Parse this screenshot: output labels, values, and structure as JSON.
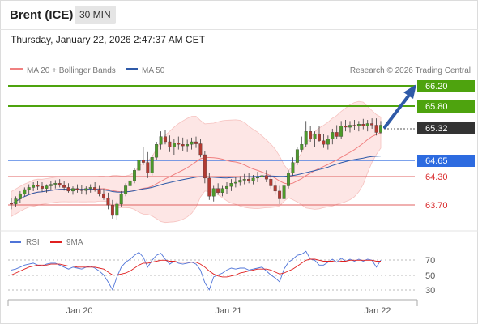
{
  "header": {
    "instrument": "Brent (ICE)",
    "timeframe": "30 MIN",
    "datetime": "Thursday, January 22, 2026 2:47:37 AM CET"
  },
  "main_legend": {
    "ma20_label": "MA 20 + Bollinger Bands",
    "ma50_label": "MA 50",
    "credit": "Research © 2026 Trading Central",
    "ma20_color": "#f08080",
    "ma50_color": "#2f5aa8"
  },
  "levels": {
    "resistance2": "66.20",
    "resistance1": "65.80",
    "current": "65.32",
    "pivot": "64.65",
    "support1": "64.30",
    "support2": "63.70",
    "colors": {
      "resistance": "#4ea30e",
      "current": "#333333",
      "pivot": "#2d6be0",
      "support": "#d9292b"
    }
  },
  "rsi_legend": {
    "rsi_label": "RSI",
    "ma_label": "9MA",
    "rsi_color": "#4f74d8",
    "ma_color": "#e02020"
  },
  "rsi_axis": [
    "70",
    "50",
    "30"
  ],
  "x_axis": [
    "Jan 20",
    "Jan 21",
    "Jan 22"
  ],
  "chart_data": {
    "type": "candlestick",
    "price_range": [
      63.3,
      66.45
    ],
    "candles": {
      "fields": [
        "open",
        "high",
        "low",
        "close"
      ],
      "values": [
        [
          63.82,
          63.92,
          63.7,
          63.8
        ],
        [
          63.8,
          63.95,
          63.74,
          63.9
        ],
        [
          63.9,
          64.05,
          63.82,
          64.0
        ],
        [
          64.0,
          64.12,
          63.95,
          64.08
        ],
        [
          64.08,
          64.18,
          64.0,
          64.12
        ],
        [
          64.12,
          64.22,
          64.05,
          64.16
        ],
        [
          64.16,
          64.25,
          64.08,
          64.14
        ],
        [
          64.14,
          64.22,
          64.04,
          64.1
        ],
        [
          64.1,
          64.18,
          64.02,
          64.15
        ],
        [
          64.15,
          64.24,
          64.08,
          64.18
        ],
        [
          64.18,
          64.26,
          64.1,
          64.2
        ],
        [
          64.2,
          64.28,
          64.12,
          64.16
        ],
        [
          64.16,
          64.24,
          64.06,
          64.12
        ],
        [
          64.12,
          64.2,
          64.02,
          64.05
        ],
        [
          64.05,
          64.14,
          63.98,
          64.1
        ],
        [
          64.1,
          64.18,
          64.02,
          64.08
        ],
        [
          64.08,
          64.16,
          64.0,
          64.06
        ],
        [
          64.06,
          64.14,
          63.98,
          64.1
        ],
        [
          64.1,
          64.18,
          64.02,
          64.12
        ],
        [
          64.12,
          64.22,
          64.04,
          64.08
        ],
        [
          64.08,
          64.15,
          63.95,
          64.0
        ],
        [
          64.0,
          64.1,
          63.88,
          63.92
        ],
        [
          63.92,
          64.02,
          63.7,
          63.78
        ],
        [
          63.78,
          63.88,
          63.52,
          63.58
        ],
        [
          63.58,
          63.85,
          63.5,
          63.8
        ],
        [
          63.8,
          64.05,
          63.75,
          64.0
        ],
        [
          64.0,
          64.2,
          63.95,
          64.15
        ],
        [
          64.15,
          64.3,
          64.1,
          64.25
        ],
        [
          64.25,
          64.5,
          64.2,
          64.45
        ],
        [
          64.45,
          64.7,
          64.4,
          64.65
        ],
        [
          64.65,
          64.9,
          64.55,
          64.6
        ],
        [
          64.6,
          64.8,
          64.3,
          64.4
        ],
        [
          64.4,
          64.75,
          64.35,
          64.7
        ],
        [
          64.7,
          65.0,
          64.65,
          64.95
        ],
        [
          64.95,
          65.2,
          64.85,
          65.1
        ],
        [
          65.1,
          65.22,
          64.95,
          65.0
        ],
        [
          65.0,
          65.12,
          64.8,
          64.9
        ],
        [
          64.9,
          65.05,
          64.75,
          64.98
        ],
        [
          64.98,
          65.1,
          64.85,
          64.95
        ],
        [
          64.95,
          65.08,
          64.82,
          64.92
        ],
        [
          64.92,
          65.04,
          64.8,
          64.95
        ],
        [
          64.95,
          65.08,
          64.85,
          65.0
        ],
        [
          65.0,
          65.1,
          64.88,
          64.96
        ],
        [
          64.96,
          65.05,
          64.7,
          64.75
        ],
        [
          64.75,
          64.82,
          64.2,
          64.3
        ],
        [
          64.3,
          64.4,
          63.88,
          63.95
        ],
        [
          63.95,
          64.15,
          63.85,
          64.1
        ],
        [
          64.1,
          64.2,
          63.98,
          64.02
        ],
        [
          64.02,
          64.15,
          63.95,
          64.1
        ],
        [
          64.1,
          64.22,
          64.0,
          64.14
        ],
        [
          64.14,
          64.28,
          64.05,
          64.2
        ],
        [
          64.2,
          64.32,
          64.12,
          64.22
        ],
        [
          64.22,
          64.34,
          64.15,
          64.26
        ],
        [
          64.26,
          64.38,
          64.18,
          64.28
        ],
        [
          64.28,
          64.4,
          64.2,
          64.25
        ],
        [
          64.25,
          64.36,
          64.18,
          64.3
        ],
        [
          64.3,
          64.42,
          64.22,
          64.32
        ],
        [
          64.32,
          64.44,
          64.26,
          64.35
        ],
        [
          64.35,
          64.45,
          64.22,
          64.28
        ],
        [
          64.28,
          64.38,
          64.1,
          64.15
        ],
        [
          64.15,
          64.25,
          63.98,
          64.05
        ],
        [
          64.05,
          64.15,
          63.8,
          63.9
        ],
        [
          63.9,
          64.2,
          63.85,
          64.15
        ],
        [
          64.15,
          64.45,
          64.1,
          64.4
        ],
        [
          64.4,
          64.7,
          64.35,
          64.6
        ],
        [
          64.6,
          64.9,
          64.55,
          64.85
        ],
        [
          64.85,
          65.1,
          64.8,
          64.95
        ],
        [
          64.95,
          65.4,
          64.9,
          65.2
        ],
        [
          65.2,
          65.3,
          65.0,
          65.05
        ],
        [
          65.05,
          65.2,
          64.9,
          65.15
        ],
        [
          65.15,
          65.3,
          65.0,
          65.02
        ],
        [
          65.02,
          65.15,
          64.88,
          64.95
        ],
        [
          64.95,
          65.12,
          64.85,
          65.05
        ],
        [
          65.05,
          65.25,
          64.95,
          65.18
        ],
        [
          65.18,
          65.32,
          65.05,
          65.1
        ],
        [
          65.1,
          65.4,
          65.05,
          65.3
        ],
        [
          65.3,
          65.42,
          65.2,
          65.28
        ],
        [
          65.28,
          65.4,
          65.18,
          65.32
        ],
        [
          65.32,
          65.42,
          65.22,
          65.3
        ],
        [
          65.3,
          65.4,
          65.2,
          65.34
        ],
        [
          65.34,
          65.44,
          65.24,
          65.3
        ],
        [
          65.3,
          65.42,
          65.2,
          65.35
        ],
        [
          65.35,
          65.45,
          65.25,
          65.32
        ],
        [
          65.32,
          65.45,
          65.12,
          65.18
        ],
        [
          65.18,
          65.4,
          65.15,
          65.32
        ]
      ]
    },
    "rsi": [
      55,
      56,
      58,
      60,
      61,
      62,
      60,
      59,
      61,
      62,
      62,
      60,
      58,
      56,
      58,
      57,
      56,
      58,
      59,
      57,
      54,
      50,
      43,
      35,
      48,
      58,
      63,
      66,
      70,
      73,
      68,
      58,
      65,
      70,
      72,
      66,
      61,
      64,
      62,
      61,
      62,
      63,
      61,
      55,
      42,
      35,
      48,
      50,
      52,
      55,
      57,
      56,
      57,
      57,
      55,
      56,
      57,
      58,
      54,
      50,
      47,
      43,
      56,
      63,
      66,
      70,
      71,
      74,
      66,
      65,
      60,
      60,
      63,
      66,
      63,
      67,
      64,
      66,
      64,
      66,
      64,
      66,
      65,
      58,
      65
    ],
    "rsi_ma": [
      50,
      52,
      54,
      56,
      58,
      59,
      60,
      60,
      60,
      61,
      61,
      61,
      60,
      59,
      59,
      58,
      58,
      58,
      58,
      58,
      57,
      56,
      53,
      50,
      50,
      51,
      52,
      54,
      57,
      60,
      62,
      62,
      63,
      64,
      65,
      65,
      64,
      64,
      63,
      63,
      63,
      63,
      63,
      61,
      58,
      54,
      51,
      49,
      48,
      48,
      49,
      50,
      52,
      53,
      54,
      55,
      56,
      56,
      56,
      55,
      53,
      51,
      52,
      54,
      56,
      59,
      62,
      65,
      66,
      66,
      65,
      64,
      64,
      64,
      63,
      64,
      64,
      65,
      65,
      65,
      65,
      65,
      65,
      64,
      64
    ],
    "rsi_range": [
      20,
      80
    ]
  }
}
